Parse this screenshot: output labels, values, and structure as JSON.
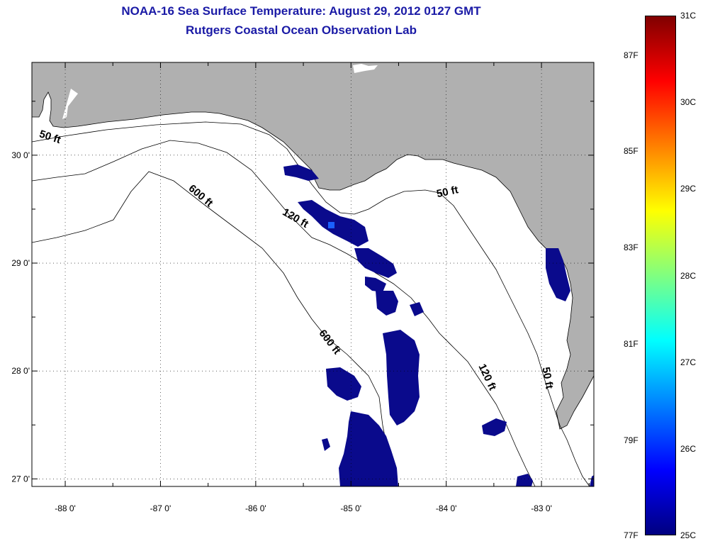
{
  "title": {
    "line1": "NOAA-16 Sea Surface Temperature:  August 29, 2012 0127 GMT",
    "line2": "Rutgers Coastal Ocean Observation Lab"
  },
  "map": {
    "lon_range": [
      -88.35,
      -82.45
    ],
    "lat_range": [
      26.93,
      30.86
    ],
    "lon_ticks": [
      -88,
      -87,
      -86,
      -85,
      -84,
      -83
    ],
    "lon_labels": [
      "-88 0'",
      "-87 0'",
      "-86 0'",
      "-85 0'",
      "-84 0'",
      "-83 0'"
    ],
    "lat_ticks": [
      30,
      29,
      28,
      27
    ],
    "lat_labels": [
      "30 0'",
      "29 0'",
      "28 0'",
      "27 0'"
    ],
    "contour_labels": [
      {
        "text": "50 ft",
        "lon": -88.17,
        "lat": 30.14,
        "angle": 18
      },
      {
        "text": "600 ft",
        "lon": -86.6,
        "lat": 29.6,
        "angle": 40
      },
      {
        "text": "120 ft",
        "lon": -85.6,
        "lat": 29.39,
        "angle": 30
      },
      {
        "text": "50 ft",
        "lon": -83.98,
        "lat": 29.63,
        "angle": -12
      },
      {
        "text": "600 ft",
        "lon": -85.25,
        "lat": 28.25,
        "angle": 52
      },
      {
        "text": "120 ft",
        "lon": -83.6,
        "lat": 27.93,
        "angle": 65
      },
      {
        "text": "50 ft",
        "lon": -82.97,
        "lat": 27.93,
        "angle": 80
      }
    ],
    "land_color": "#b0b0b0",
    "sst_color": "#0a0a8c"
  },
  "colorbar": {
    "fahrenheit_labels": [
      "87F",
      "85F",
      "83F",
      "81F",
      "79F",
      "77F"
    ],
    "celsius_labels": [
      "31C",
      "30C",
      "29C",
      "28C",
      "27C",
      "26C",
      "25C"
    ],
    "colors": [
      "#800000",
      "#ff0000",
      "#ff8000",
      "#ffff00",
      "#80ff80",
      "#00ffff",
      "#0080ff",
      "#0000ff",
      "#000080"
    ]
  }
}
